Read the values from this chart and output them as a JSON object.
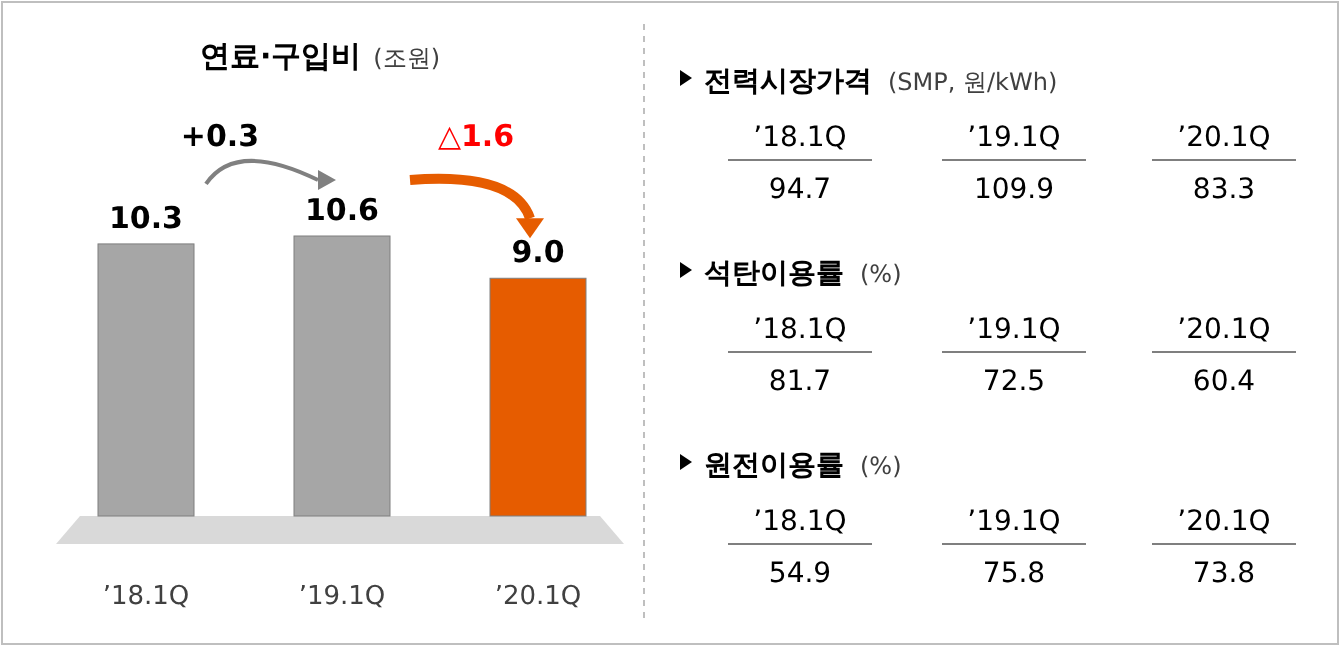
{
  "chart_data": [
    {
      "type": "bar",
      "title": "연료·구입비",
      "subtitle": "(조원)",
      "categories": [
        "’18.1Q",
        "’19.1Q",
        "’20.1Q"
      ],
      "values": [
        10.3,
        10.6,
        9.0
      ],
      "colors": [
        "#a6a6a6",
        "#a6a6a6",
        "#e65c00"
      ],
      "value_labels": [
        "10.3",
        "10.6",
        "9.0"
      ],
      "annotations": [
        "+0.3",
        "△1.6"
      ]
    },
    {
      "type": "other",
      "title": "전력시장가격",
      "subtitle": "(SMP, 원/kWh)",
      "categories": [
        "’18.1Q",
        "’19.1Q",
        "’20.1Q"
      ],
      "values": [
        94.7,
        109.9,
        83.3
      ],
      "data_labels": true
    },
    {
      "type": "other",
      "title": "석탄이용률",
      "subtitle": "(%)",
      "categories": [
        "’18.1Q",
        "’19.1Q",
        "’20.1Q"
      ],
      "values": [
        81.7,
        72.5,
        60.4
      ],
      "data_labels": true
    },
    {
      "type": "other",
      "title": "원전이용률",
      "subtitle": "(%)",
      "categories": [
        "’18.1Q",
        "’19.1Q",
        "’20.1Q"
      ],
      "values": [
        54.9,
        75.8,
        73.8
      ],
      "data_labels": true
    }
  ]
}
